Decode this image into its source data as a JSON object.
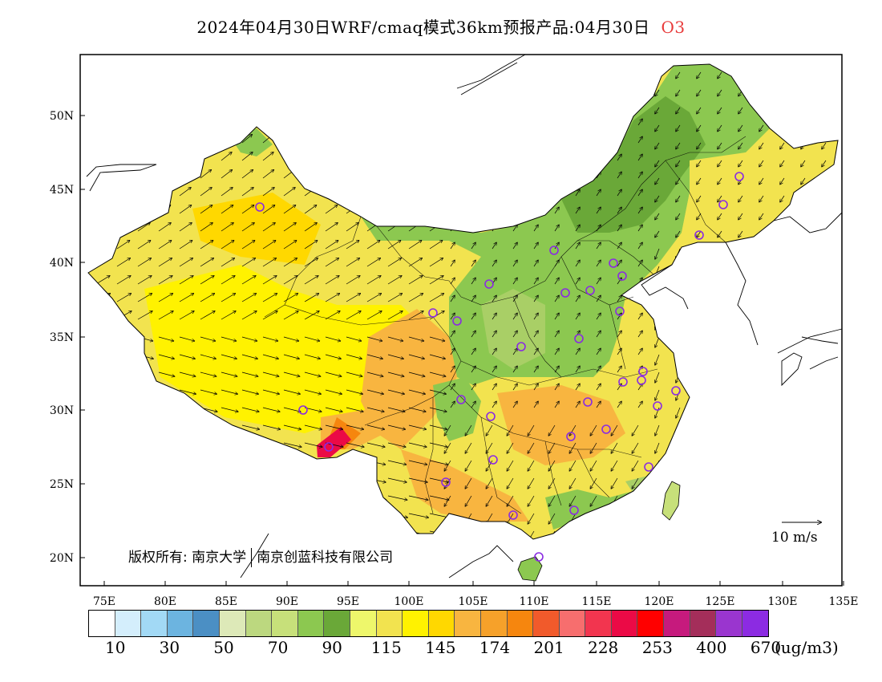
{
  "title": {
    "main": "2024年04月30日WRF/cmaq模式36km预报产品:04月30日",
    "species": "O3"
  },
  "axes": {
    "lon_ticks": [
      "75E",
      "80E",
      "85E",
      "90E",
      "95E",
      "100E",
      "105E",
      "110E",
      "115E",
      "120E",
      "125E",
      "130E",
      "135E"
    ],
    "lat_ticks": [
      "20N",
      "25N",
      "30N",
      "35N",
      "40N",
      "45N",
      "50N"
    ]
  },
  "copyright": {
    "prefix": "版权所有: 南京大学",
    "company": "南京创蓝科技有限公司"
  },
  "reference_vector": {
    "label": "10  m/s"
  },
  "legend": {
    "colors": [
      "#ffffff",
      "#d4eefc",
      "#a2d9f5",
      "#6cb4e0",
      "#4b8fc4",
      "#dde9b8",
      "#bcd87f",
      "#c7e07a",
      "#8cc850",
      "#6aa838",
      "#eef76b",
      "#f2e34f",
      "#fff200",
      "#ffd800",
      "#f8b540",
      "#f6a12a",
      "#f6860e",
      "#f15a2b",
      "#f76e6e",
      "#f2354f",
      "#eb0a46",
      "#ff0000",
      "#c61a7d",
      "#a42e5a",
      "#9a35cf",
      "#8c2be2"
    ],
    "labels": [
      "10",
      "30",
      "50",
      "70",
      "90",
      "115",
      "145",
      "174",
      "201",
      "228",
      "253",
      "400",
      "670"
    ],
    "units": "(ug/m3)"
  },
  "map_colors": {
    "frame": "#000000",
    "vector": "#000000",
    "station_marker": "#8a2be2",
    "north_green": "#8cc850",
    "north_dark_green": "#6aa838",
    "central_green": "#a9cf66",
    "yellow": "#f2e34f",
    "bright_yellow": "#fff200",
    "orange": "#f8b540",
    "dark_orange": "#f6860e",
    "red": "#eb0a46"
  }
}
